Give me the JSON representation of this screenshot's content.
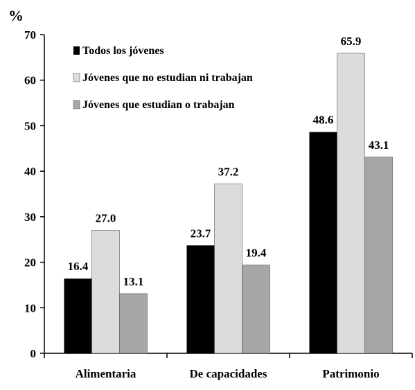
{
  "chart_data": {
    "type": "bar",
    "unit_label": "%",
    "categories": [
      "Alimentaria",
      "De capacidades",
      "Patrimonio"
    ],
    "series": [
      {
        "name": "Todos los jóvenes",
        "values": [
          16.4,
          23.7,
          48.6
        ],
        "color": "#000000"
      },
      {
        "name": "Jóvenes que no estudian ni trabajan",
        "values": [
          27.0,
          37.2,
          65.9
        ],
        "color": "#dcdcdc"
      },
      {
        "name": "Jóvenes que estudian o trabajan",
        "values": [
          13.1,
          19.4,
          43.1
        ],
        "color": "#a6a6a6"
      }
    ],
    "data_labels": [
      [
        "16.4",
        "23.7",
        "48.6"
      ],
      [
        "27.0",
        "37.2",
        "65.9"
      ],
      [
        "13.1",
        "19.4",
        "43.1"
      ]
    ],
    "ylim": [
      0,
      70
    ],
    "yticks": [
      0,
      10,
      20,
      30,
      40,
      50,
      60,
      70
    ],
    "grid": false,
    "legend_position": "top-left"
  }
}
